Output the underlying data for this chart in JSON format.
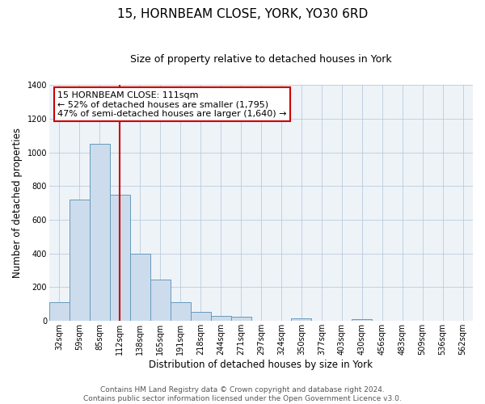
{
  "title": "15, HORNBEAM CLOSE, YORK, YO30 6RD",
  "subtitle": "Size of property relative to detached houses in York",
  "xlabel": "Distribution of detached houses by size in York",
  "ylabel": "Number of detached properties",
  "categories": [
    "32sqm",
    "59sqm",
    "85sqm",
    "112sqm",
    "138sqm",
    "165sqm",
    "191sqm",
    "218sqm",
    "244sqm",
    "271sqm",
    "297sqm",
    "324sqm",
    "350sqm",
    "377sqm",
    "403sqm",
    "430sqm",
    "456sqm",
    "483sqm",
    "509sqm",
    "536sqm",
    "562sqm"
  ],
  "values": [
    110,
    720,
    1050,
    750,
    400,
    245,
    110,
    50,
    30,
    25,
    0,
    0,
    15,
    0,
    0,
    10,
    0,
    0,
    0,
    0,
    0
  ],
  "bar_color": "#ccdcec",
  "bar_edge_color": "#6699bb",
  "red_line_index": 3,
  "red_line_color": "#cc0000",
  "ylim": [
    0,
    1400
  ],
  "yticks": [
    0,
    200,
    400,
    600,
    800,
    1000,
    1200,
    1400
  ],
  "annotation_line1": "15 HORNBEAM CLOSE: 111sqm",
  "annotation_line2": "← 52% of detached houses are smaller (1,795)",
  "annotation_line3": "47% of semi-detached houses are larger (1,640) →",
  "annotation_box_color": "#ffffff",
  "annotation_box_edge": "#cc0000",
  "footer_line1": "Contains HM Land Registry data © Crown copyright and database right 2024.",
  "footer_line2": "Contains public sector information licensed under the Open Government Licence v3.0.",
  "background_color": "#eef3f8",
  "grid_color": "#b0c4d8",
  "title_fontsize": 11,
  "subtitle_fontsize": 9,
  "axis_label_fontsize": 8.5,
  "tick_fontsize": 7,
  "annotation_fontsize": 8,
  "footer_fontsize": 6.5
}
